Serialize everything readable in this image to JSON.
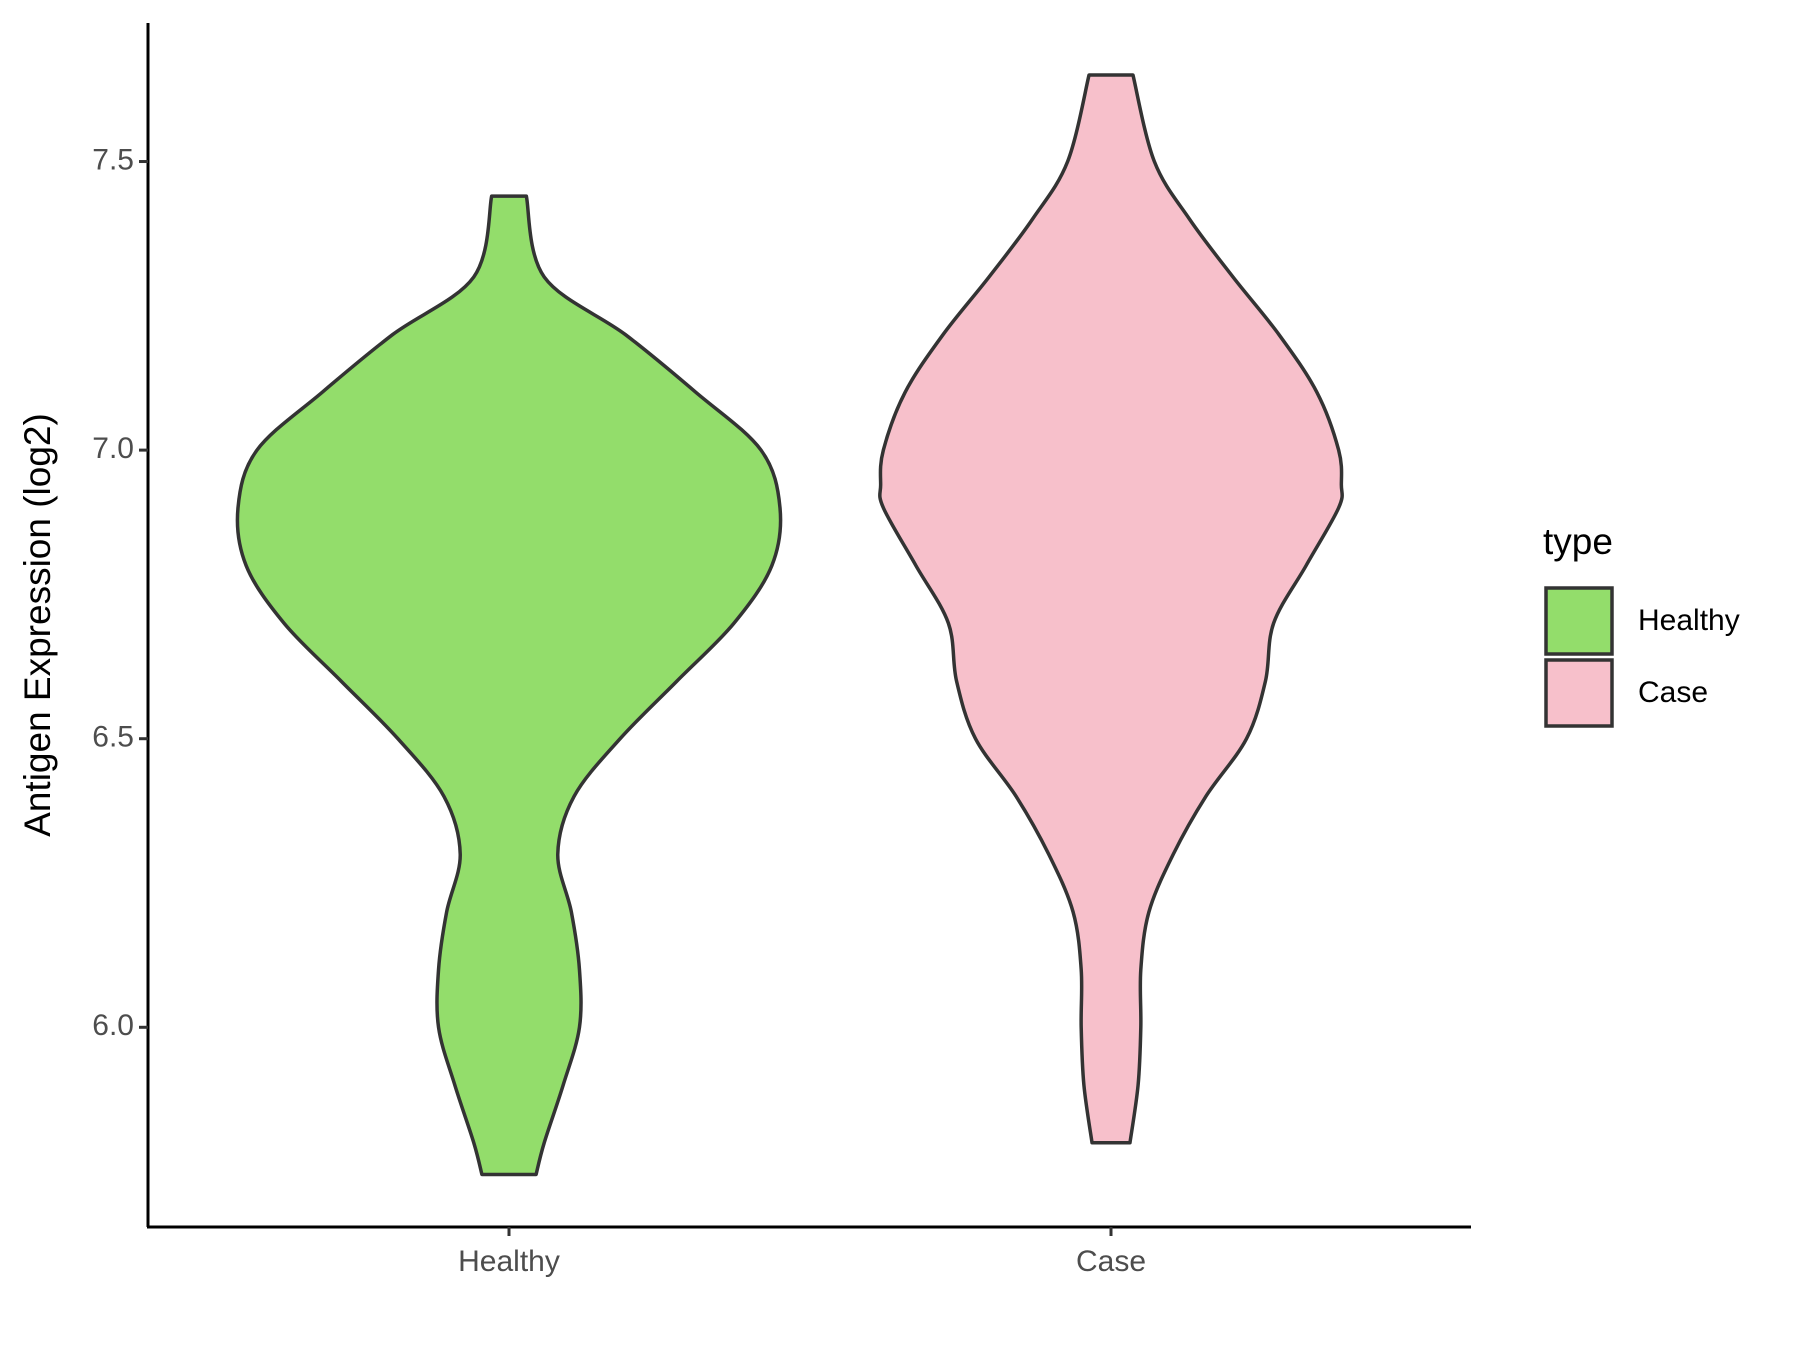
{
  "chart_data": {
    "type": "violin",
    "y_label": "Antigen Expression (log2)",
    "categories": [
      "Healthy",
      "Case"
    ],
    "legend_title": "type",
    "legend_position": "right",
    "ylim": [
      5.654,
      7.74
    ],
    "yticks": [
      {
        "value": 6,
        "label": "6.0"
      },
      {
        "value": 6.5,
        "label": "6.5"
      },
      {
        "value": 7,
        "label": "7.0"
      },
      {
        "value": 7.5,
        "label": "7.5"
      }
    ],
    "grid": false,
    "outline_color": "#333333",
    "series": [
      {
        "name": "Healthy",
        "color": "#93dd6b",
        "y": [
          7.44,
          7.3,
          7.2,
          7.1,
          7.0,
          6.9,
          6.8,
          6.7,
          6.6,
          6.5,
          6.4,
          6.3,
          6.2,
          6.1,
          6.0,
          5.9,
          5.8,
          5.745
        ],
        "density": [
          0.064,
          0.13,
          0.43,
          0.69,
          0.93,
          1.0,
          0.97,
          0.83,
          0.62,
          0.41,
          0.24,
          0.18,
          0.23,
          0.26,
          0.26,
          0.2,
          0.13,
          0.1
        ]
      },
      {
        "name": "Case",
        "color": "#f7c0cb",
        "y": [
          7.65,
          7.5,
          7.4,
          7.3,
          7.2,
          7.1,
          7.0,
          6.94,
          6.9,
          6.8,
          6.7,
          6.6,
          6.5,
          6.4,
          6.3,
          6.2,
          6.1,
          6.0,
          5.9,
          5.8
        ],
        "density": [
          0.081,
          0.16,
          0.29,
          0.45,
          0.62,
          0.76,
          0.84,
          0.85,
          0.84,
          0.72,
          0.6,
          0.57,
          0.5,
          0.35,
          0.23,
          0.14,
          0.11,
          0.11,
          0.1,
          0.07
        ]
      }
    ]
  }
}
